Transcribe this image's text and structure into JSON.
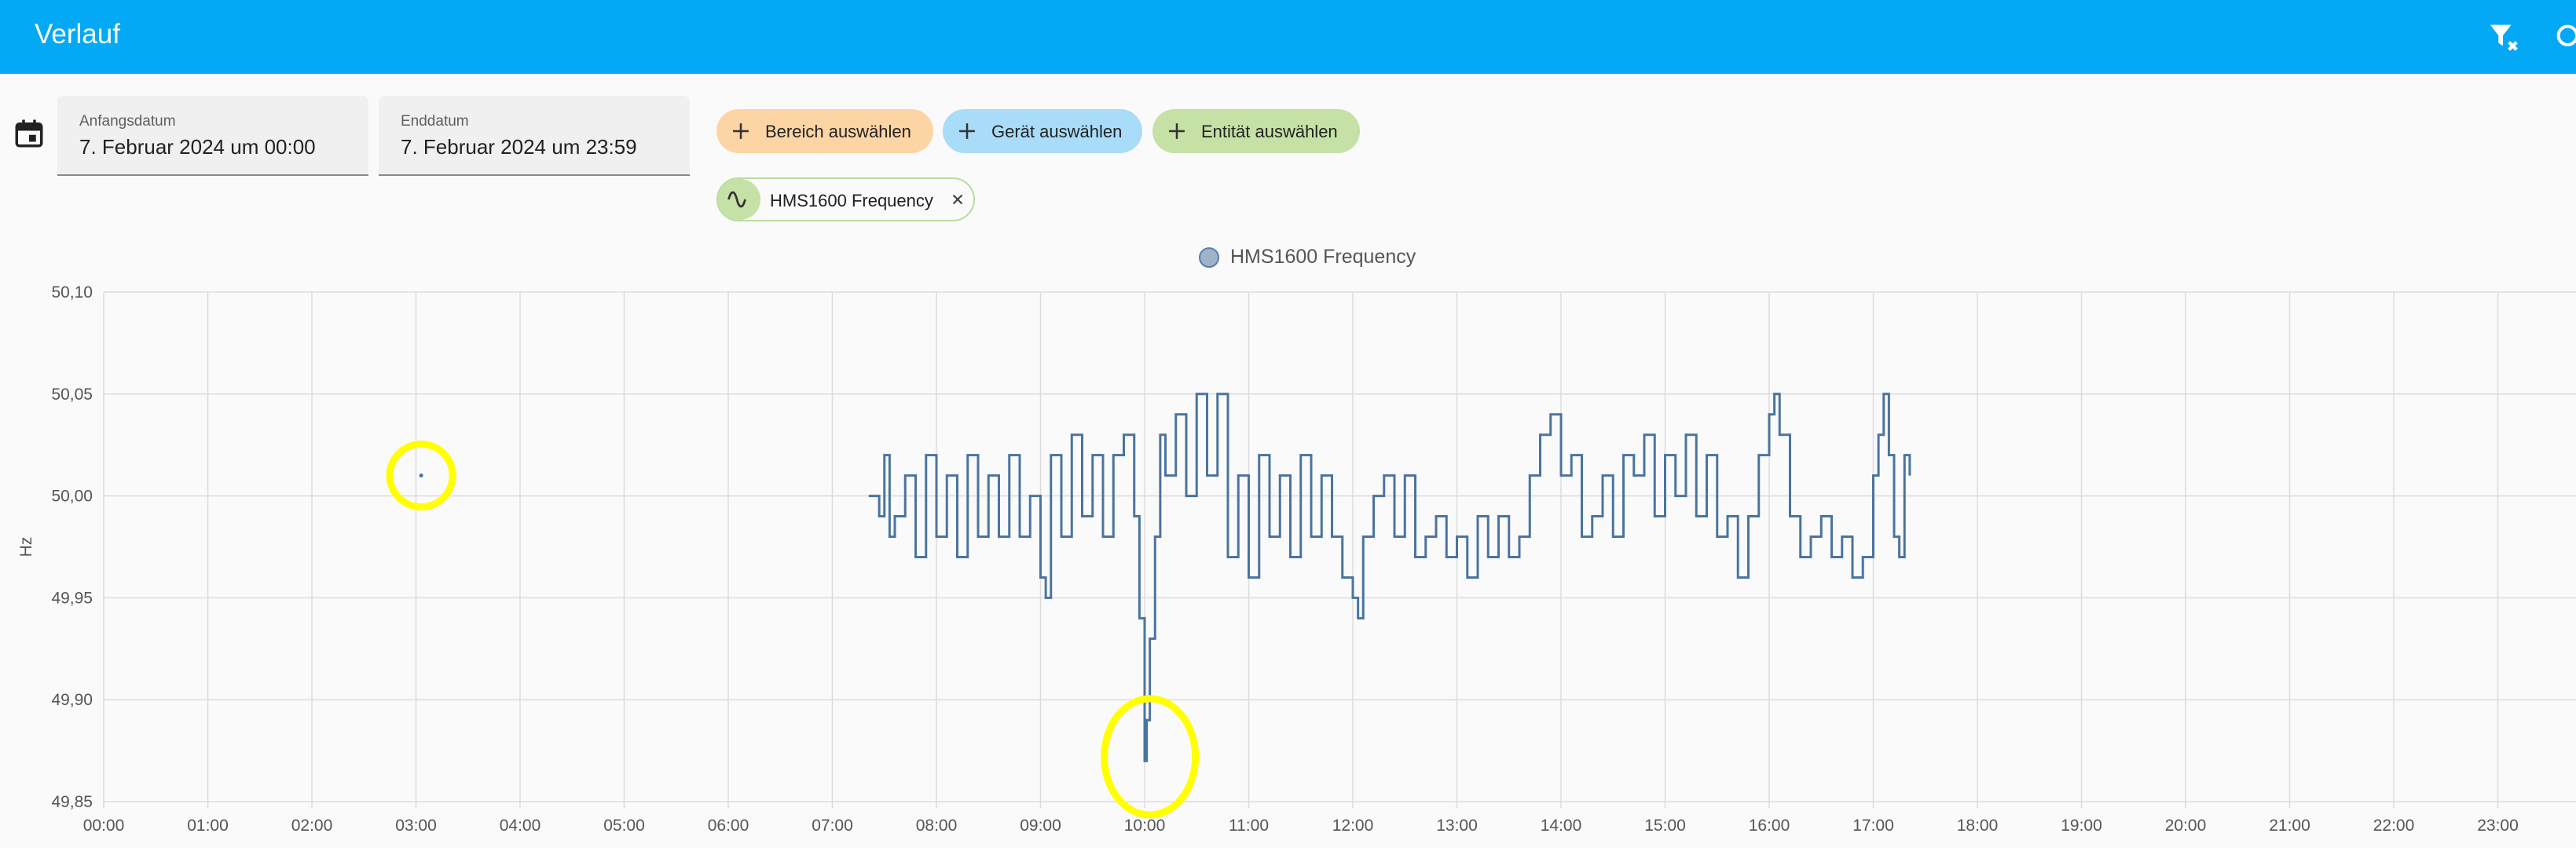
{
  "header": {
    "title": "Verlauf",
    "icons": [
      "filter-remove-icon",
      "search-icon"
    ]
  },
  "filters": {
    "calendar_icon": "calendar-icon",
    "start": {
      "label": "Anfangsdatum",
      "value": "7. Februar 2024 um 00:00"
    },
    "end": {
      "label": "Enddatum",
      "value": "7. Februar 2024 um 23:59"
    },
    "chips": [
      {
        "label": "Bereich auswählen",
        "color": "#fdd4a4"
      },
      {
        "label": "Gerät auswählen",
        "color": "#a8dcf8"
      },
      {
        "label": "Entität auswählen",
        "color": "#c5e1a5"
      }
    ],
    "selected_entity": {
      "label": "HMS1600 Frequency",
      "icon": "sine-wave-icon",
      "remove_icon": "close-icon"
    }
  },
  "colors": {
    "header": "#03a9f4",
    "series": "#4a74a0",
    "annotation": "#ffff00"
  },
  "chart_data": {
    "type": "line",
    "legend": "top-center",
    "grid": true,
    "ylabel": "Hz",
    "ylim": [
      49.85,
      50.1
    ],
    "y_ticks": [
      "50,10",
      "50,05",
      "50,00",
      "49,95",
      "49,90",
      "49,85"
    ],
    "x_ticks": [
      "00:00",
      "01:00",
      "02:00",
      "03:00",
      "04:00",
      "05:00",
      "06:00",
      "07:00",
      "08:00",
      "09:00",
      "10:00",
      "11:00",
      "12:00",
      "13:00",
      "14:00",
      "15:00",
      "16:00",
      "17:00",
      "18:00",
      "19:00",
      "20:00",
      "21:00",
      "22:00",
      "23:00"
    ],
    "series": [
      {
        "name": "HMS1600 Frequency",
        "x_hours": [
          3.05,
          7.35,
          7.4,
          7.45,
          7.5,
          7.55,
          7.6,
          7.7,
          7.8,
          7.9,
          8.0,
          8.1,
          8.2,
          8.3,
          8.4,
          8.5,
          8.6,
          8.7,
          8.8,
          8.9,
          9.0,
          9.05,
          9.1,
          9.2,
          9.3,
          9.4,
          9.5,
          9.6,
          9.7,
          9.8,
          9.9,
          9.95,
          10.0,
          10.02,
          10.05,
          10.1,
          10.15,
          10.2,
          10.3,
          10.4,
          10.5,
          10.6,
          10.7,
          10.8,
          10.9,
          11.0,
          11.1,
          11.2,
          11.3,
          11.4,
          11.5,
          11.6,
          11.7,
          11.8,
          11.9,
          12.0,
          12.05,
          12.1,
          12.2,
          12.3,
          12.4,
          12.5,
          12.6,
          12.7,
          12.8,
          12.9,
          13.0,
          13.1,
          13.2,
          13.3,
          13.4,
          13.5,
          13.6,
          13.7,
          13.8,
          13.9,
          14.0,
          14.1,
          14.2,
          14.3,
          14.4,
          14.5,
          14.6,
          14.7,
          14.8,
          14.9,
          15.0,
          15.1,
          15.2,
          15.3,
          15.4,
          15.5,
          15.6,
          15.7,
          15.8,
          15.9,
          16.0,
          16.05,
          16.1,
          16.2,
          16.3,
          16.4,
          16.5,
          16.6,
          16.7,
          16.8,
          16.9,
          17.0,
          17.05,
          17.1,
          17.15,
          17.2,
          17.25,
          17.3,
          17.35
        ],
        "values": [
          50.01,
          50.0,
          50.0,
          49.99,
          50.02,
          49.98,
          49.99,
          50.01,
          49.97,
          50.02,
          49.98,
          50.01,
          49.97,
          50.02,
          49.98,
          50.01,
          49.98,
          50.02,
          49.98,
          50.0,
          49.96,
          49.95,
          50.02,
          49.98,
          50.03,
          49.99,
          50.02,
          49.98,
          50.02,
          50.03,
          49.99,
          49.94,
          49.87,
          49.89,
          49.93,
          49.98,
          50.03,
          50.01,
          50.04,
          50.0,
          50.05,
          50.01,
          50.05,
          49.97,
          50.01,
          49.96,
          50.02,
          49.98,
          50.01,
          49.97,
          50.02,
          49.98,
          50.01,
          49.98,
          49.96,
          49.95,
          49.94,
          49.98,
          50.0,
          50.01,
          49.98,
          50.01,
          49.97,
          49.98,
          49.99,
          49.97,
          49.98,
          49.96,
          49.99,
          49.97,
          49.99,
          49.97,
          49.98,
          50.01,
          50.03,
          50.04,
          50.01,
          50.02,
          49.98,
          49.99,
          50.01,
          49.98,
          50.02,
          50.01,
          50.03,
          49.99,
          50.02,
          50.0,
          50.03,
          49.99,
          50.02,
          49.98,
          49.99,
          49.96,
          49.99,
          50.02,
          50.04,
          50.05,
          50.03,
          49.99,
          49.97,
          49.98,
          49.99,
          49.97,
          49.98,
          49.96,
          49.97,
          50.01,
          50.03,
          50.05,
          50.02,
          49.98,
          49.97,
          50.02,
          50.01
        ]
      }
    ]
  }
}
